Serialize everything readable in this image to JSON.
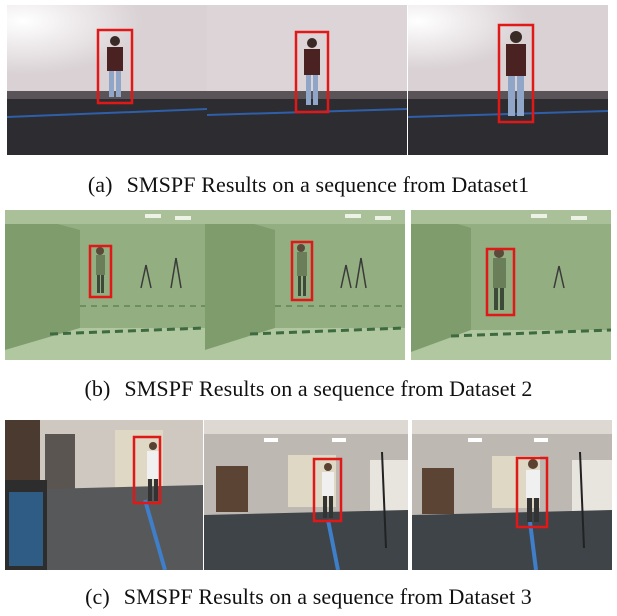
{
  "rows": [
    {
      "tag": "(a)",
      "caption": "SMSPF Results on a sequence from Dataset1"
    },
    {
      "tag": "(b)",
      "caption": "SMSPF Results on a sequence from Dataset 2"
    },
    {
      "tag": "(c)",
      "caption": "SMSPF Results on a sequence from Dataset 3"
    }
  ],
  "colors": {
    "bbox": "#e01818",
    "dataset1_wall": "#e6dfe2",
    "dataset2_tint": "#8fae7c",
    "dataset3_floor": "#3f4448"
  }
}
